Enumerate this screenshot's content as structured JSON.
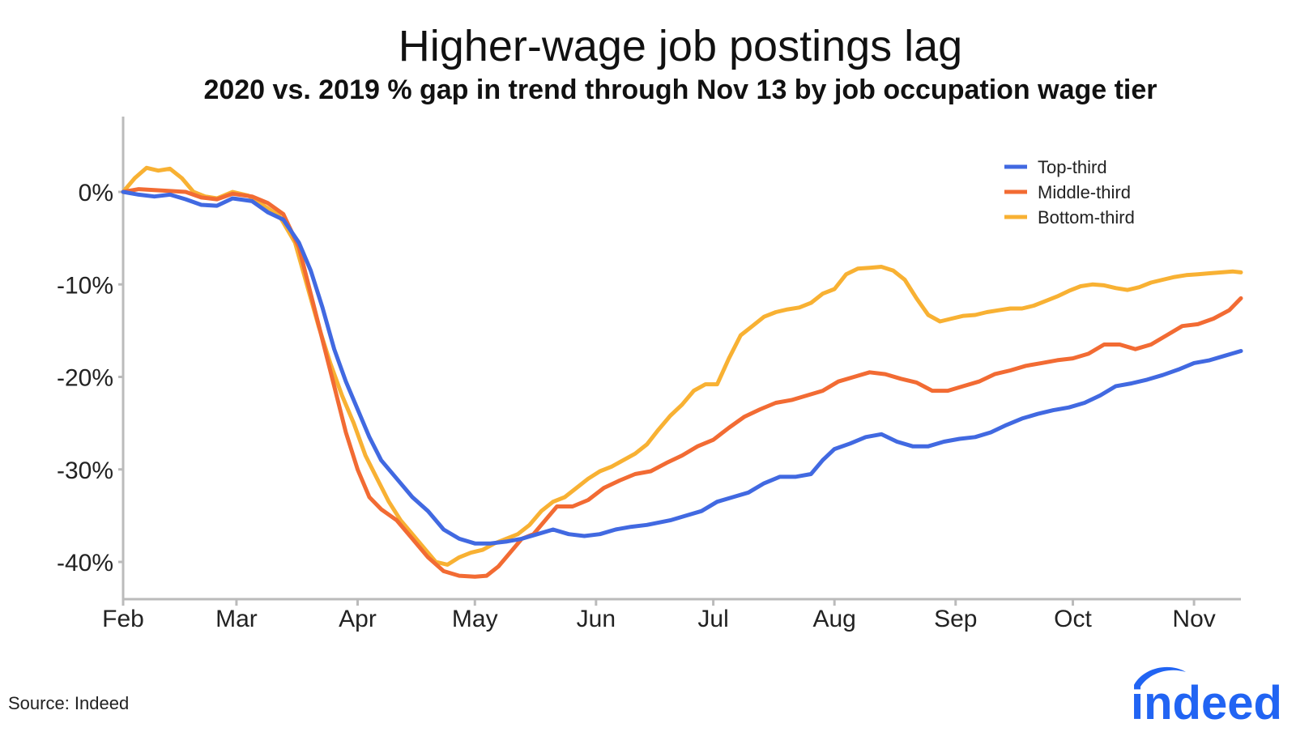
{
  "title": "Higher-wage job postings lag",
  "subtitle": "2020 vs. 2019 % gap in trend through Nov 13 by job occupation wage tier",
  "source": "Source: Indeed",
  "logo_text": "indeed",
  "chart_data": {
    "type": "line",
    "title": "Higher-wage job postings lag",
    "subtitle": "2020 vs. 2019 % gap in trend through Nov 13 by job occupation wage tier",
    "xlabel": "",
    "ylabel": "",
    "x_unit": "day of year 2020 (0 = Feb 1)",
    "xlim": [
      0,
      286
    ],
    "ylim": [
      -44,
      8
    ],
    "x_ticks": [
      {
        "label": "Feb",
        "x": 0
      },
      {
        "label": "Mar",
        "x": 29
      },
      {
        "label": "Apr",
        "x": 60
      },
      {
        "label": "May",
        "x": 90
      },
      {
        "label": "Jun",
        "x": 121
      },
      {
        "label": "Jul",
        "x": 151
      },
      {
        "label": "Aug",
        "x": 182
      },
      {
        "label": "Sep",
        "x": 213
      },
      {
        "label": "Oct",
        "x": 243
      },
      {
        "label": "Nov",
        "x": 274
      }
    ],
    "y_ticks": [
      {
        "label": "0%",
        "y": 0
      },
      {
        "label": "-10%",
        "y": -10
      },
      {
        "label": "-20%",
        "y": -20
      },
      {
        "label": "-30%",
        "y": -30
      },
      {
        "label": "-40%",
        "y": -40
      }
    ],
    "grid": false,
    "legend_position": "top-right",
    "series": [
      {
        "name": "Top-third",
        "color": "#4169E1",
        "points": [
          [
            0,
            0
          ],
          [
            4,
            -0.3
          ],
          [
            8,
            -0.5
          ],
          [
            12,
            -0.3
          ],
          [
            16,
            -0.8
          ],
          [
            20,
            -1.4
          ],
          [
            24,
            -1.5
          ],
          [
            28,
            -0.7
          ],
          [
            33,
            -1
          ],
          [
            37,
            -2.2
          ],
          [
            41,
            -3
          ],
          [
            45,
            -5.5
          ],
          [
            48,
            -8.5
          ],
          [
            51,
            -12.5
          ],
          [
            54,
            -17
          ],
          [
            57,
            -20.5
          ],
          [
            60,
            -23.5
          ],
          [
            63,
            -26.5
          ],
          [
            66,
            -29
          ],
          [
            70,
            -31
          ],
          [
            74,
            -33
          ],
          [
            78,
            -34.5
          ],
          [
            82,
            -36.5
          ],
          [
            86,
            -37.5
          ],
          [
            90,
            -38
          ],
          [
            94,
            -38
          ],
          [
            98,
            -37.8
          ],
          [
            102,
            -37.5
          ],
          [
            106,
            -37
          ],
          [
            110,
            -36.5
          ],
          [
            114,
            -37
          ],
          [
            118,
            -37.2
          ],
          [
            122,
            -37
          ],
          [
            126,
            -36.5
          ],
          [
            130,
            -36.2
          ],
          [
            134,
            -36
          ],
          [
            140,
            -35.5
          ],
          [
            144,
            -35
          ],
          [
            148,
            -34.5
          ],
          [
            152,
            -33.5
          ],
          [
            156,
            -33
          ],
          [
            160,
            -32.5
          ],
          [
            164,
            -31.5
          ],
          [
            168,
            -30.8
          ],
          [
            172,
            -30.8
          ],
          [
            176,
            -30.5
          ],
          [
            179,
            -29
          ],
          [
            182,
            -27.8
          ],
          [
            186,
            -27.2
          ],
          [
            190,
            -26.5
          ],
          [
            194,
            -26.2
          ],
          [
            198,
            -27
          ],
          [
            202,
            -27.5
          ],
          [
            206,
            -27.5
          ],
          [
            210,
            -27
          ],
          [
            214,
            -26.7
          ],
          [
            218,
            -26.5
          ],
          [
            222,
            -26
          ],
          [
            226,
            -25.2
          ],
          [
            230,
            -24.5
          ],
          [
            234,
            -24
          ],
          [
            238,
            -23.6
          ],
          [
            242,
            -23.3
          ],
          [
            246,
            -22.8
          ],
          [
            250,
            -22
          ],
          [
            254,
            -21
          ],
          [
            258,
            -20.7
          ],
          [
            262,
            -20.3
          ],
          [
            266,
            -19.8
          ],
          [
            270,
            -19.2
          ],
          [
            274,
            -18.5
          ],
          [
            278,
            -18.2
          ],
          [
            282,
            -17.7
          ],
          [
            286,
            -17.2
          ]
        ]
      },
      {
        "name": "Middle-third",
        "color": "#F26B33",
        "points": [
          [
            0,
            0
          ],
          [
            4,
            0.3
          ],
          [
            8,
            0.2
          ],
          [
            12,
            0.1
          ],
          [
            16,
            0
          ],
          [
            20,
            -0.6
          ],
          [
            24,
            -0.8
          ],
          [
            28,
            -0.2
          ],
          [
            33,
            -0.5
          ],
          [
            37,
            -1.2
          ],
          [
            41,
            -2.4
          ],
          [
            45,
            -6
          ],
          [
            48,
            -11
          ],
          [
            51,
            -16
          ],
          [
            54,
            -21
          ],
          [
            57,
            -26
          ],
          [
            60,
            -30
          ],
          [
            63,
            -33
          ],
          [
            66,
            -34.3
          ],
          [
            70,
            -35.5
          ],
          [
            74,
            -37.5
          ],
          [
            78,
            -39.5
          ],
          [
            82,
            -41
          ],
          [
            86,
            -41.5
          ],
          [
            90,
            -41.6
          ],
          [
            93,
            -41.5
          ],
          [
            96,
            -40.5
          ],
          [
            99,
            -39
          ],
          [
            102,
            -37.5
          ],
          [
            105,
            -37
          ],
          [
            108,
            -35.5
          ],
          [
            111,
            -34
          ],
          [
            115,
            -34
          ],
          [
            119,
            -33.3
          ],
          [
            123,
            -32
          ],
          [
            127,
            -31.2
          ],
          [
            131,
            -30.5
          ],
          [
            135,
            -30.2
          ],
          [
            139,
            -29.3
          ],
          [
            143,
            -28.5
          ],
          [
            147,
            -27.5
          ],
          [
            151,
            -26.8
          ],
          [
            155,
            -25.5
          ],
          [
            159,
            -24.3
          ],
          [
            163,
            -23.5
          ],
          [
            167,
            -22.8
          ],
          [
            171,
            -22.5
          ],
          [
            175,
            -22
          ],
          [
            179,
            -21.5
          ],
          [
            183,
            -20.5
          ],
          [
            187,
            -20
          ],
          [
            191,
            -19.5
          ],
          [
            195,
            -19.7
          ],
          [
            199,
            -20.2
          ],
          [
            203,
            -20.6
          ],
          [
            207,
            -21.5
          ],
          [
            211,
            -21.5
          ],
          [
            215,
            -21
          ],
          [
            219,
            -20.5
          ],
          [
            223,
            -19.7
          ],
          [
            227,
            -19.3
          ],
          [
            231,
            -18.8
          ],
          [
            235,
            -18.5
          ],
          [
            239,
            -18.2
          ],
          [
            243,
            -18
          ],
          [
            247,
            -17.5
          ],
          [
            251,
            -16.5
          ],
          [
            255,
            -16.5
          ],
          [
            259,
            -17
          ],
          [
            263,
            -16.5
          ],
          [
            267,
            -15.5
          ],
          [
            271,
            -14.5
          ],
          [
            275,
            -14.3
          ],
          [
            279,
            -13.7
          ],
          [
            283,
            -12.8
          ],
          [
            286,
            -11.5
          ]
        ]
      },
      {
        "name": "Bottom-third",
        "color": "#F8B133",
        "points": [
          [
            0,
            0
          ],
          [
            3,
            1.5
          ],
          [
            6,
            2.6
          ],
          [
            9,
            2.3
          ],
          [
            12,
            2.5
          ],
          [
            15,
            1.5
          ],
          [
            18,
            0
          ],
          [
            21,
            -0.5
          ],
          [
            24,
            -0.7
          ],
          [
            28,
            0
          ],
          [
            32,
            -0.4
          ],
          [
            36,
            -1.5
          ],
          [
            40,
            -2.6
          ],
          [
            44,
            -5.5
          ],
          [
            47,
            -10
          ],
          [
            50,
            -14.5
          ],
          [
            53,
            -18.5
          ],
          [
            56,
            -22
          ],
          [
            59,
            -25
          ],
          [
            62,
            -28.5
          ],
          [
            65,
            -31
          ],
          [
            68,
            -33.5
          ],
          [
            71,
            -35.5
          ],
          [
            74,
            -37
          ],
          [
            77,
            -38.5
          ],
          [
            80,
            -40
          ],
          [
            83,
            -40.3
          ],
          [
            86,
            -39.5
          ],
          [
            89,
            -39
          ],
          [
            92,
            -38.7
          ],
          [
            95,
            -38
          ],
          [
            98,
            -37.5
          ],
          [
            101,
            -37
          ],
          [
            104,
            -36
          ],
          [
            107,
            -34.5
          ],
          [
            110,
            -33.5
          ],
          [
            113,
            -33
          ],
          [
            116,
            -32
          ],
          [
            119,
            -31
          ],
          [
            122,
            -30.2
          ],
          [
            125,
            -29.7
          ],
          [
            128,
            -29
          ],
          [
            131,
            -28.3
          ],
          [
            134,
            -27.3
          ],
          [
            137,
            -25.7
          ],
          [
            140,
            -24.2
          ],
          [
            143,
            -23
          ],
          [
            146,
            -21.5
          ],
          [
            149,
            -20.8
          ],
          [
            152,
            -20.8
          ],
          [
            155,
            -18
          ],
          [
            158,
            -15.5
          ],
          [
            161,
            -14.5
          ],
          [
            164,
            -13.5
          ],
          [
            167,
            -13
          ],
          [
            170,
            -12.7
          ],
          [
            173,
            -12.5
          ],
          [
            176,
            -12
          ],
          [
            179,
            -11
          ],
          [
            182,
            -10.5
          ],
          [
            185,
            -8.9
          ],
          [
            188,
            -8.3
          ],
          [
            191,
            -8.2
          ],
          [
            194,
            -8.1
          ],
          [
            197,
            -8.5
          ],
          [
            200,
            -9.5
          ],
          [
            203,
            -11.5
          ],
          [
            206,
            -13.3
          ],
          [
            209,
            -14
          ],
          [
            212,
            -13.7
          ],
          [
            215,
            -13.4
          ],
          [
            218,
            -13.3
          ],
          [
            221,
            -13
          ],
          [
            224,
            -12.8
          ],
          [
            227,
            -12.6
          ],
          [
            230,
            -12.6
          ],
          [
            233,
            -12.3
          ],
          [
            236,
            -11.8
          ],
          [
            239,
            -11.3
          ],
          [
            242,
            -10.7
          ],
          [
            245,
            -10.2
          ],
          [
            248,
            -10
          ],
          [
            251,
            -10.1
          ],
          [
            254,
            -10.4
          ],
          [
            257,
            -10.6
          ],
          [
            260,
            -10.3
          ],
          [
            263,
            -9.8
          ],
          [
            266,
            -9.5
          ],
          [
            269,
            -9.2
          ],
          [
            272,
            -9
          ],
          [
            275,
            -8.9
          ],
          [
            278,
            -8.8
          ],
          [
            281,
            -8.7
          ],
          [
            284,
            -8.6
          ],
          [
            286,
            -8.7
          ]
        ]
      }
    ]
  }
}
